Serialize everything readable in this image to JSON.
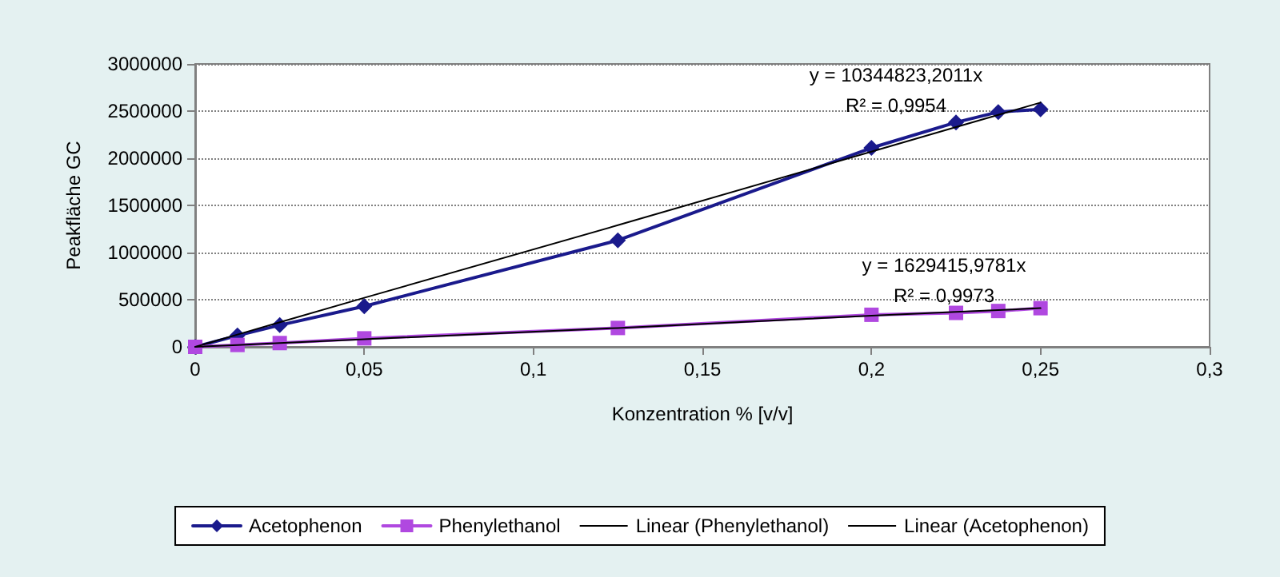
{
  "chart_data": {
    "type": "line",
    "xlabel": "Konzentration % [v/v]",
    "ylabel": "Peakfläche GC",
    "x": [
      0,
      0.0125,
      0.025,
      0.05,
      0.125,
      0.2,
      0.225,
      0.2375,
      0.25
    ],
    "series": [
      {
        "name": "Acetophenon",
        "color": "#1a1a8c",
        "marker": "diamond",
        "values": [
          0,
          120000,
          230000,
          430000,
          1130000,
          2110000,
          2380000,
          2490000,
          2520000
        ]
      },
      {
        "name": "Phenylethanol",
        "color": "#b048e0",
        "marker": "square",
        "values": [
          0,
          20000,
          40000,
          90000,
          200000,
          340000,
          360000,
          380000,
          410000
        ]
      },
      {
        "name": "Linear (Phenylethanol)",
        "color": "#000000",
        "marker": "none",
        "values": [
          0,
          20000,
          40000,
          80000,
          200000,
          330000,
          370000,
          390000,
          410000
        ]
      },
      {
        "name": "Linear (Acetophenon)",
        "color": "#000000",
        "marker": "none",
        "values": [
          0,
          130000,
          260000,
          520000,
          1290000,
          2070000,
          2330000,
          2460000,
          2590000
        ]
      }
    ],
    "xlim": [
      0,
      0.3
    ],
    "xticks": [
      0,
      {
        "value": 0.05,
        "label": "0,05"
      },
      {
        "value": 0.1,
        "label": "0,1"
      },
      {
        "value": 0.15,
        "label": "0,15"
      },
      {
        "value": 0.2,
        "label": "0,2"
      },
      {
        "value": 0.25,
        "label": "0,25"
      },
      {
        "value": 0.3,
        "label": "0,3"
      }
    ],
    "ylim": [
      0,
      3000000
    ],
    "yticks": [
      0,
      500000,
      1000000,
      1500000,
      2000000,
      2500000,
      3000000
    ],
    "annotations": [
      "y = 10344823,2011x",
      "R² = 0,9954",
      "y = 1629415,9781x",
      "R² = 0,9973"
    ],
    "grid": "y",
    "legend": "bottom",
    "line_style": "solid"
  }
}
